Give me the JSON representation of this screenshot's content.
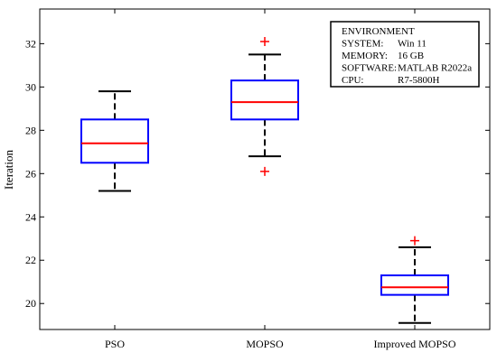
{
  "chart_data": {
    "type": "boxplot",
    "title": "",
    "xlabel": "",
    "ylabel": "Iteration",
    "ylim": [
      18.8,
      33.6
    ],
    "yticks": [
      20,
      22,
      24,
      26,
      28,
      30,
      32
    ],
    "grid": false,
    "categories": [
      "PSO",
      "MOPSO",
      "Improved MOPSO"
    ],
    "boxes": [
      {
        "category": "PSO",
        "whisker_low": 25.2,
        "q1": 26.5,
        "median": 27.4,
        "q3": 28.5,
        "whisker_high": 29.8,
        "outliers": []
      },
      {
        "category": "MOPSO",
        "whisker_low": 26.8,
        "q1": 28.5,
        "median": 29.3,
        "q3": 30.3,
        "whisker_high": 31.5,
        "outliers": [
          32.1,
          26.1
        ]
      },
      {
        "category": "Improved MOPSO",
        "whisker_low": 19.1,
        "q1": 20.4,
        "median": 20.75,
        "q3": 21.3,
        "whisker_high": 22.6,
        "outliers": [
          22.9
        ]
      }
    ],
    "colors": {
      "box": "#0000ff",
      "median": "#ff0000",
      "whisker": "#000000",
      "outlier": "#ff0000"
    },
    "legend_placement": "top-right",
    "annotation": {
      "title": "ENVIRONMENT",
      "rows": [
        {
          "label": "SYSTEM:",
          "value": "Win 11"
        },
        {
          "label": "MEMORY:",
          "value": "16 GB"
        },
        {
          "label": "SOFTWARE:",
          "value": "MATLAB R2022a"
        },
        {
          "label": "CPU:",
          "value": "R7-5800H"
        }
      ]
    }
  }
}
